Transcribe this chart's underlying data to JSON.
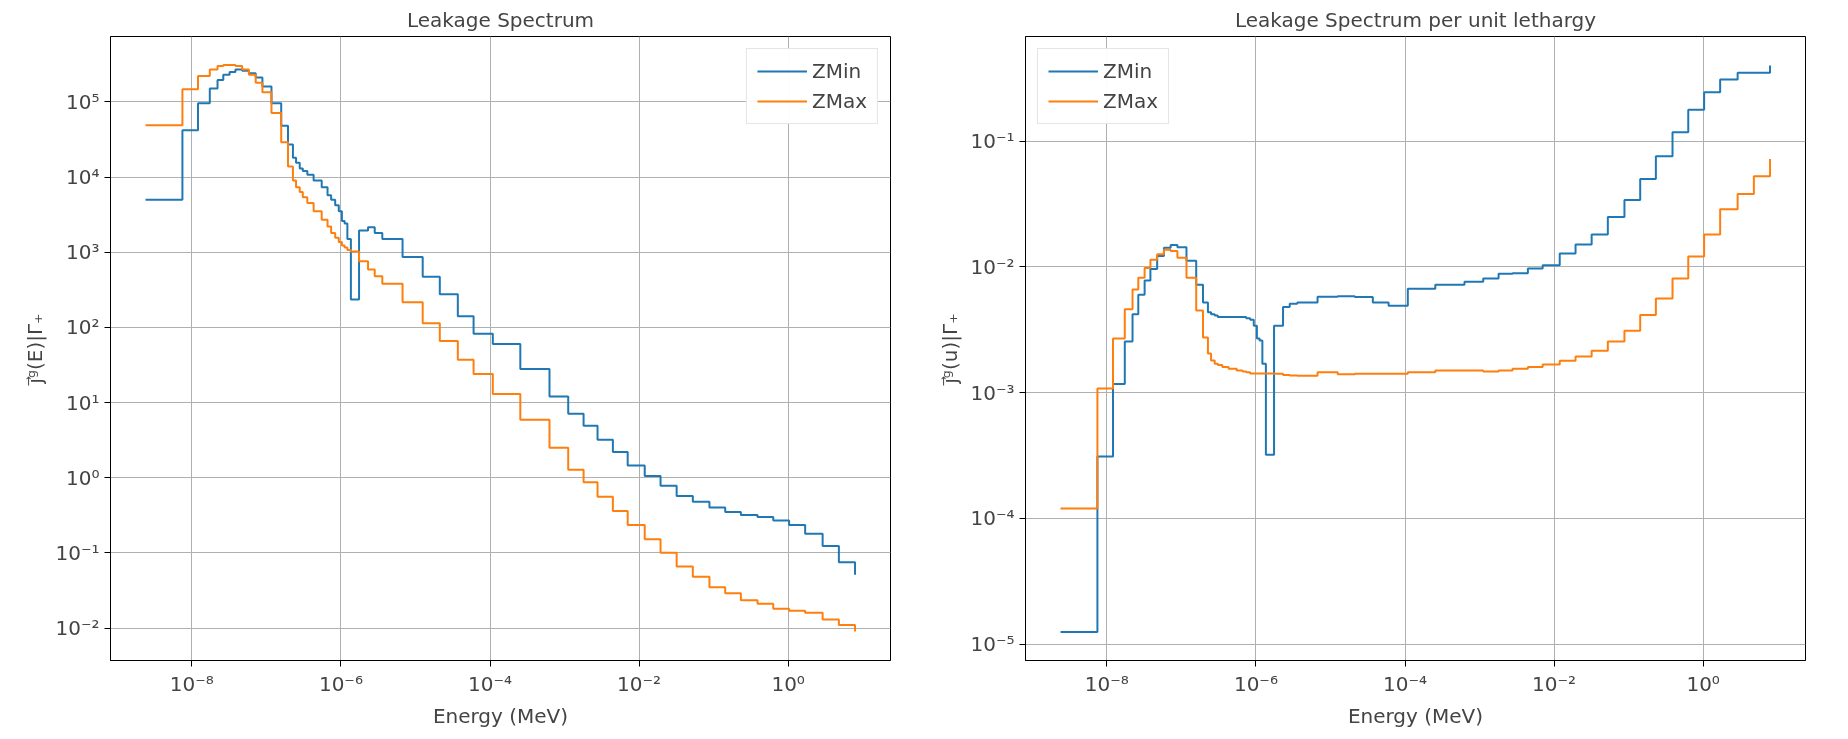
{
  "chart_data": [
    {
      "type": "step",
      "title": "Leakage Spectrum",
      "xlabel": "Energy (MeV)",
      "ylabel": "j⃗ᵍ(E)|Γ₊",
      "log": "xy",
      "grid": true,
      "legend": "top right",
      "xlim": [
        8.1e-10,
        23.6
      ],
      "ylim": [
        0.0037,
        740000
      ],
      "xticks": [
        {
          "value": 1e-08,
          "label": "10⁻⁸"
        },
        {
          "value": 1e-06,
          "label": "10⁻⁶"
        },
        {
          "value": 0.0001,
          "label": "10⁻⁴"
        },
        {
          "value": 0.01,
          "label": "10⁻²"
        },
        {
          "value": 1,
          "label": "10⁰"
        }
      ],
      "yticks": [
        {
          "value": 0.01,
          "label": "10⁻²"
        },
        {
          "value": 0.1,
          "label": "10⁻¹"
        },
        {
          "value": 1,
          "label": "10⁰"
        },
        {
          "value": 10,
          "label": "10¹"
        },
        {
          "value": 100,
          "label": "10²"
        },
        {
          "value": 1000,
          "label": "10³"
        },
        {
          "value": 10000,
          "label": "10⁴"
        },
        {
          "value": 100000,
          "label": "10⁵"
        }
      ],
      "x": [
        2.39e-09,
        7.47e-09,
        1.21e-08,
        1.74e-08,
        2.21e-08,
        2.64e-08,
        3.21e-08,
        3.84e-08,
        4.73e-08,
        5.83e-08,
        7.18e-08,
        8.84e-08,
        1.17e-07,
        1.58e-07,
        1.95e-07,
        2.27e-07,
        2.5e-07,
        2.8e-07,
        3.08e-07,
        3.54e-07,
        4.3e-07,
        5.52e-07,
        6.61e-07,
        7.39e-07,
        8.37e-07,
        9.35e-07,
        1.03e-06,
        1.12e-06,
        1.22e-06,
        1.36e-06,
        1.75e-06,
        2.31e-06,
        2.84e-06,
        3.59e-06,
        6.71e-06,
        1.25e-05,
        2.12e-05,
        3.7e-05,
        6.02e-05,
        0.000109,
        0.000255,
        0.000628,
        0.00112,
        0.0018,
        0.00277,
        0.00445,
        0.00703,
        0.0119,
        0.0194,
        0.0319,
        0.0526,
        0.0879,
        0.143,
        0.232,
        0.388,
        0.631,
        1.03,
        1.69,
        2.9,
        4.79,
        7.89
      ],
      "series": [
        {
          "name": "ZMin",
          "color": "#1f77b4",
          "values": [
            5000,
            42000,
            96000,
            150000,
            195000,
            230000,
            250000,
            270000,
            260000,
            240000,
            210000,
            160000,
            96000,
            48000,
            27000,
            18000,
            15500,
            13000,
            12000,
            10700,
            9000,
            7300,
            5700,
            5000,
            4200,
            3500,
            2600,
            2400,
            1500,
            235,
            1950,
            2150,
            1800,
            1500,
            860,
            470,
            275,
            140,
            82,
            60,
            28,
            12,
            7.1,
            4.9,
            3.2,
            2.2,
            1.45,
            1.05,
            0.78,
            0.57,
            0.48,
            0.4,
            0.35,
            0.32,
            0.3,
            0.27,
            0.235,
            0.18,
            0.123,
            0.075,
            0.051
          ]
        },
        {
          "name": "ZMax",
          "color": "#ff7f0e",
          "values": [
            49000,
            147000,
            220000,
            270000,
            300000,
            310000,
            310000,
            300000,
            270000,
            230000,
            180000,
            134000,
            71000,
            29000,
            13800,
            9000,
            7300,
            6300,
            5400,
            4500,
            3500,
            2700,
            2200,
            1800,
            1560,
            1370,
            1230,
            1150,
            1070,
            1020,
            760,
            590,
            480,
            380,
            215,
            113,
            66,
            37,
            24,
            13,
            5.9,
            2.5,
            1.28,
            0.87,
            0.56,
            0.36,
            0.235,
            0.152,
            0.1,
            0.066,
            0.048,
            0.035,
            0.029,
            0.0235,
            0.021,
            0.018,
            0.017,
            0.016,
            0.013,
            0.011,
            0.009
          ]
        }
      ]
    },
    {
      "type": "step",
      "title": "Leakage Spectrum per unit lethargy",
      "xlabel": "Energy (MeV)",
      "ylabel": "j⃗ᵍ(u)|Γ₊",
      "log": "xy",
      "grid": true,
      "legend": "top left",
      "xlim": [
        8.1e-10,
        23.6
      ],
      "ylim": [
        7.4e-06,
        0.68
      ],
      "xticks": [
        {
          "value": 1e-08,
          "label": "10⁻⁸"
        },
        {
          "value": 1e-06,
          "label": "10⁻⁶"
        },
        {
          "value": 0.0001,
          "label": "10⁻⁴"
        },
        {
          "value": 0.01,
          "label": "10⁻²"
        },
        {
          "value": 1,
          "label": "10⁰"
        }
      ],
      "yticks": [
        {
          "value": 1e-05,
          "label": "10⁻⁵"
        },
        {
          "value": 0.0001,
          "label": "10⁻⁴"
        },
        {
          "value": 0.001,
          "label": "10⁻³"
        },
        {
          "value": 0.01,
          "label": "10⁻²"
        },
        {
          "value": 0.1,
          "label": "10⁻¹"
        }
      ],
      "x": [
        2.39e-09,
        7.47e-09,
        1.21e-08,
        1.74e-08,
        2.21e-08,
        2.64e-08,
        3.21e-08,
        3.84e-08,
        4.73e-08,
        5.83e-08,
        7.18e-08,
        8.84e-08,
        1.17e-07,
        1.58e-07,
        1.95e-07,
        2.27e-07,
        2.5e-07,
        2.8e-07,
        3.08e-07,
        3.54e-07,
        4.3e-07,
        5.52e-07,
        6.61e-07,
        7.39e-07,
        8.37e-07,
        9.35e-07,
        1.03e-06,
        1.12e-06,
        1.22e-06,
        1.36e-06,
        1.75e-06,
        2.31e-06,
        2.84e-06,
        3.59e-06,
        6.71e-06,
        1.25e-05,
        2.12e-05,
        3.7e-05,
        6.02e-05,
        0.000109,
        0.000255,
        0.000628,
        0.00112,
        0.0018,
        0.00277,
        0.00445,
        0.00703,
        0.0119,
        0.0194,
        0.0319,
        0.0526,
        0.0879,
        0.143,
        0.232,
        0.388,
        0.631,
        1.03,
        1.69,
        2.9,
        4.79,
        7.89
      ],
      "series": [
        {
          "name": "ZMin",
          "color": "#1f77b4",
          "values": [
            1.25e-05,
            0.00031,
            0.00117,
            0.00255,
            0.0042,
            0.006,
            0.0078,
            0.0096,
            0.0122,
            0.0142,
            0.0149,
            0.0143,
            0.0112,
            0.0072,
            0.0052,
            0.00435,
            0.0042,
            0.0041,
            0.004,
            0.004,
            0.004,
            0.004,
            0.004,
            0.0039,
            0.0038,
            0.0034,
            0.0027,
            0.0026,
            0.0017,
            0.00032,
            0.0034,
            0.0048,
            0.0051,
            0.0052,
            0.0058,
            0.00585,
            0.00575,
            0.0052,
            0.0049,
            0.0067,
            0.0072,
            0.0076,
            0.0081,
            0.0088,
            0.0089,
            0.0097,
            0.0103,
            0.0128,
            0.0151,
            0.0181,
            0.0249,
            0.034,
            0.05,
            0.076,
            0.118,
            0.178,
            0.245,
            0.31,
            0.35,
            0.35,
            0.4
          ]
        },
        {
          "name": "ZMax",
          "color": "#ff7f0e",
          "values": [
            0.00012,
            0.00108,
            0.0027,
            0.0046,
            0.0066,
            0.0082,
            0.0098,
            0.0114,
            0.0126,
            0.0137,
            0.0134,
            0.0118,
            0.0082,
            0.0045,
            0.00275,
            0.00205,
            0.0018,
            0.0017,
            0.00166,
            0.0016,
            0.00155,
            0.0015,
            0.00147,
            0.00145,
            0.00142,
            0.00142,
            0.00142,
            0.00142,
            0.00142,
            0.00142,
            0.00141,
            0.00138,
            0.00137,
            0.00136,
            0.00145,
            0.0014,
            0.00141,
            0.00141,
            0.00141,
            0.00145,
            0.0015,
            0.0015,
            0.00147,
            0.0015,
            0.00155,
            0.0016,
            0.00167,
            0.00179,
            0.00194,
            0.00215,
            0.00255,
            0.0031,
            0.00415,
            0.0056,
            0.0081,
            0.0121,
            0.0181,
            0.0288,
            0.038,
            0.0525,
            0.072
          ]
        }
      ]
    }
  ]
}
